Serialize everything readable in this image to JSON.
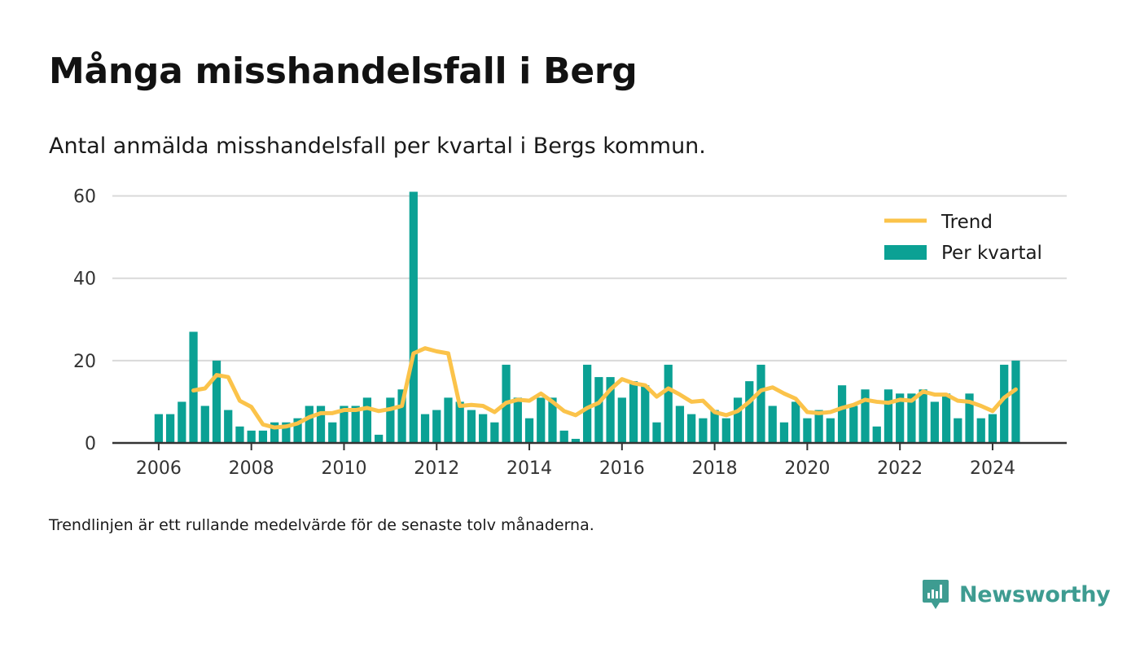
{
  "header": {
    "title": "Många misshandelsfall i Berg",
    "subtitle": "Antal anmälda misshandelsfall per kvartal i Bergs kommun."
  },
  "footnote": "Trendlinjen är ett rullande medelvärde för de senaste tolv månaderna.",
  "brand": {
    "name": "Newsworthy",
    "icon": "newsworthy-logo-icon",
    "color": "#3e9c91"
  },
  "chart_data": {
    "type": "bar",
    "ylim": [
      0,
      70
    ],
    "yticks": [
      0,
      20,
      40,
      60
    ],
    "ytick_labels": [
      "0",
      "20",
      "40",
      "60"
    ],
    "xlim": [
      2005.0,
      2025.6
    ],
    "xticks": [
      2006,
      2008,
      2010,
      2012,
      2014,
      2016,
      2018,
      2020,
      2022,
      2024
    ],
    "xtick_labels": [
      "2006",
      "2008",
      "2010",
      "2012",
      "2014",
      "2016",
      "2018",
      "2020",
      "2022",
      "2024"
    ],
    "grid": true,
    "legend_position": "top-right",
    "colors": {
      "bars": "#0ba194",
      "trend": "#fbc34a",
      "grid": "#d9d9d9",
      "axis": "#333333"
    },
    "x_start": "2006 Q1",
    "series": [
      {
        "name": "Per kvartal",
        "type": "bar",
        "values": [
          7,
          7,
          10,
          27,
          9,
          20,
          8,
          4,
          3,
          3,
          5,
          5,
          6,
          9,
          9,
          5,
          9,
          9,
          11,
          2,
          11,
          13,
          61,
          7,
          8,
          11,
          10,
          8,
          7,
          5,
          19,
          11,
          6,
          11,
          11,
          3,
          1,
          19,
          16,
          16,
          11,
          15,
          14,
          5,
          19,
          9,
          7,
          6,
          8,
          6,
          11,
          15,
          19,
          9,
          5,
          10,
          6,
          8,
          6,
          14,
          9,
          13,
          4,
          13,
          12,
          12,
          13,
          10,
          12,
          6,
          12,
          6,
          7,
          19,
          20
        ]
      },
      {
        "name": "Trend",
        "type": "line",
        "values": [
          null,
          null,
          null,
          12.75,
          13.25,
          16.5,
          16,
          10.25,
          8.75,
          4.5,
          3.75,
          4,
          4.75,
          6.25,
          7.25,
          7.25,
          8,
          8,
          8.5,
          7.75,
          8.25,
          9,
          21.75,
          23,
          22.25,
          21.75,
          9,
          9.25,
          9,
          7.5,
          9.75,
          10.5,
          10.25,
          12,
          10,
          7.75,
          6.75,
          8.5,
          9.75,
          13,
          15.5,
          14.5,
          14,
          11.25,
          13.25,
          11.75,
          10,
          10.25,
          7.5,
          6.75,
          7.75,
          10,
          12.75,
          13.5,
          12,
          10.75,
          7.5,
          7.25,
          7.5,
          8.5,
          9.25,
          10.5,
          10,
          9.75,
          10.5,
          10.25,
          12.5,
          11.75,
          11.75,
          10.25,
          10,
          9,
          7.75,
          11,
          13
        ]
      }
    ]
  }
}
